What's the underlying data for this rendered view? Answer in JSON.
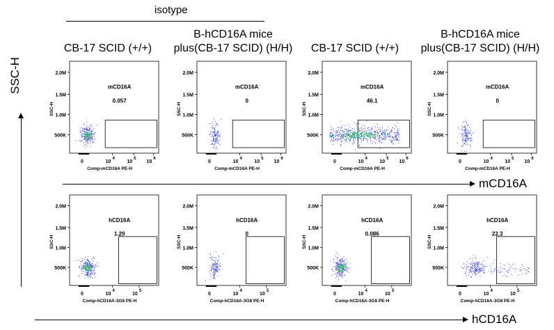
{
  "header": {
    "isotype_label": "isotype",
    "columns": [
      {
        "line1": "CB-17 SCID (+/+)",
        "line2": ""
      },
      {
        "line1": "B-hCD16A mice",
        "line2": "plus(CB-17 SCID)  (H/H)"
      },
      {
        "line1": "CB-17 SCID (+/+)",
        "line2": ""
      },
      {
        "line1": "B-hCD16A mice",
        "line2": "plus(CB-17 SCID)  (H/H)"
      }
    ]
  },
  "axes": {
    "y_global": "SSC-H",
    "row1_global": "mCD16A",
    "row2_global": "hCD16A"
  },
  "chart_data": [
    {
      "type": "scatter",
      "row": 1,
      "col": 1,
      "gate_label": "mCD16A",
      "gate_value": "0.057",
      "xlabel": "Comp-mCD16A PE-H",
      "ylabel": "SSC-H",
      "yticks": [
        "500K",
        "1.0M",
        "1.5M",
        "2.0M"
      ],
      "xticks": [
        "0",
        "10",
        "4",
        "10",
        "5",
        "10",
        "6"
      ],
      "cluster": {
        "x": 0.2,
        "y": 0.8,
        "spread": "compact",
        "colored": true
      }
    },
    {
      "type": "scatter",
      "row": 1,
      "col": 2,
      "gate_label": "mCD16A",
      "gate_value": "0",
      "xlabel": "Comp-mCD16A PE-H",
      "ylabel": "SSC-H",
      "yticks": [
        "500K",
        "1.0M",
        "1.5M",
        "2.0M"
      ],
      "xticks": [
        "0",
        "10",
        "4",
        "10",
        "5",
        "10",
        "6"
      ],
      "cluster": {
        "x": 0.2,
        "y": 0.8,
        "spread": "sparse",
        "colored": false
      }
    },
    {
      "type": "scatter",
      "row": 1,
      "col": 3,
      "gate_label": "mCD16A",
      "gate_value": "46.1",
      "xlabel": "Comp-mCD16A PE-H",
      "ylabel": "SSC-H",
      "yticks": [
        "500K",
        "1.0M",
        "1.5M",
        "2.0M"
      ],
      "xticks": [
        "0",
        "10",
        "4",
        "10",
        "5",
        "10",
        "6"
      ],
      "cluster": {
        "x": 0.4,
        "y": 0.8,
        "spread": "wide",
        "colored": true
      }
    },
    {
      "type": "scatter",
      "row": 1,
      "col": 4,
      "gate_label": "mCD16A",
      "gate_value": "0",
      "xlabel": "Comp-mCD16A PE-H",
      "ylabel": "SSC-H",
      "yticks": [
        "500K",
        "1.0M",
        "1.5M",
        "2.0M"
      ],
      "xticks": [
        "0",
        "10",
        "4",
        "10",
        "5",
        "10",
        "6"
      ],
      "cluster": {
        "x": 0.2,
        "y": 0.8,
        "spread": "sparse",
        "colored": false
      }
    },
    {
      "type": "scatter",
      "row": 2,
      "col": 1,
      "gate_label": "hCD16A",
      "gate_value": "1.29",
      "xlabel": "Comp-hCD16A-3G8 PE-H",
      "ylabel": "SSC-H",
      "yticks": [
        "500K",
        "1.0M",
        "1.5M",
        "2.0M"
      ],
      "xticks": [
        "0",
        "10",
        "4",
        "10",
        "5"
      ],
      "cluster": {
        "x": 0.2,
        "y": 0.8,
        "spread": "compact",
        "colored": true
      }
    },
    {
      "type": "scatter",
      "row": 2,
      "col": 2,
      "gate_label": "hCD16A",
      "gate_value": "0",
      "xlabel": "Comp-hCD16A-3G8 PE-H",
      "ylabel": "SSC-H",
      "yticks": [
        "500K",
        "1.0M",
        "1.5M",
        "2.0M"
      ],
      "xticks": [
        "0",
        "10",
        "4",
        "10",
        "5"
      ],
      "cluster": {
        "x": 0.2,
        "y": 0.8,
        "spread": "sparse",
        "colored": false
      }
    },
    {
      "type": "scatter",
      "row": 2,
      "col": 3,
      "gate_label": "hCD16A",
      "gate_value": "0.086",
      "xlabel": "Comp-hCD16A-3G8 PE-H",
      "ylabel": "SSC-H",
      "yticks": [
        "500K",
        "1.0M",
        "1.5M",
        "2.0M"
      ],
      "xticks": [
        "0",
        "10",
        "4",
        "10",
        "5"
      ],
      "cluster": {
        "x": 0.2,
        "y": 0.8,
        "spread": "compact",
        "colored": true
      }
    },
    {
      "type": "scatter",
      "row": 2,
      "col": 4,
      "gate_label": "hCD16A",
      "gate_value": "22.3",
      "xlabel": "Comp-hCD16A-3G8 PE-H",
      "ylabel": "SSC-H",
      "yticks": [
        "500K",
        "1.0M",
        "1.5M",
        "2.0M"
      ],
      "xticks": [
        "0",
        "10",
        "4",
        "10",
        "5"
      ],
      "cluster": {
        "x": 0.3,
        "y": 0.8,
        "spread": "tail",
        "colored": false
      }
    }
  ],
  "colors": {
    "dots": "#3a3ad8",
    "dense_green": "#2fbf4a",
    "dense_cyan": "#33c6d8",
    "dense_yellow": "#e8d23a",
    "frame": "#000000"
  }
}
